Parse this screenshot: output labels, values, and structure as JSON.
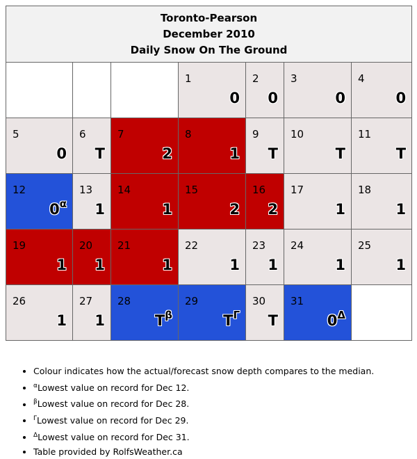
{
  "header": {
    "line1": "Toronto-Pearson",
    "line2": "December 2010",
    "line3": "Daily Snow On The Ground"
  },
  "colors": {
    "normal": "#ebe5e5",
    "above_median": "#c00000",
    "record_low": "#2352d9",
    "blank": "#ffffff"
  },
  "legend_icon": "medal-icon",
  "weeks": [
    [
      {
        "day": "",
        "value": "",
        "status": "blank"
      },
      {
        "day": "",
        "value": "",
        "status": "blank"
      },
      {
        "day": "",
        "value": "",
        "status": "blank"
      },
      {
        "day": "1",
        "value": "0",
        "status": "normal"
      },
      {
        "day": "2",
        "value": "0",
        "status": "normal"
      },
      {
        "day": "3",
        "value": "0",
        "status": "normal"
      },
      {
        "day": "4",
        "value": "0",
        "status": "normal"
      }
    ],
    [
      {
        "day": "5",
        "value": "0",
        "status": "normal"
      },
      {
        "day": "6",
        "value": "T",
        "status": "normal"
      },
      {
        "day": "7",
        "value": "2",
        "status": "above_median"
      },
      {
        "day": "8",
        "value": "1",
        "status": "above_median"
      },
      {
        "day": "9",
        "value": "T",
        "status": "normal"
      },
      {
        "day": "10",
        "value": "T",
        "status": "normal"
      },
      {
        "day": "11",
        "value": "T",
        "status": "normal"
      }
    ],
    [
      {
        "day": "12",
        "value": "0",
        "sup": "α",
        "status": "record_low",
        "medal": true
      },
      {
        "day": "13",
        "value": "1",
        "status": "normal"
      },
      {
        "day": "14",
        "value": "1",
        "status": "above_median"
      },
      {
        "day": "15",
        "value": "2",
        "status": "above_median"
      },
      {
        "day": "16",
        "value": "2",
        "status": "above_median"
      },
      {
        "day": "17",
        "value": "1",
        "status": "normal"
      },
      {
        "day": "18",
        "value": "1",
        "status": "normal"
      }
    ],
    [
      {
        "day": "19",
        "value": "1",
        "status": "above_median"
      },
      {
        "day": "20",
        "value": "1",
        "status": "above_median"
      },
      {
        "day": "21",
        "value": "1",
        "status": "above_median"
      },
      {
        "day": "22",
        "value": "1",
        "status": "normal"
      },
      {
        "day": "23",
        "value": "1",
        "status": "normal"
      },
      {
        "day": "24",
        "value": "1",
        "status": "normal"
      },
      {
        "day": "25",
        "value": "1",
        "status": "normal"
      }
    ],
    [
      {
        "day": "26",
        "value": "1",
        "status": "normal"
      },
      {
        "day": "27",
        "value": "1",
        "status": "normal"
      },
      {
        "day": "28",
        "value": "T",
        "sup": "β",
        "status": "record_low",
        "medal": true
      },
      {
        "day": "29",
        "value": "T",
        "sup": "Γ",
        "status": "record_low",
        "medal": true
      },
      {
        "day": "30",
        "value": "T",
        "status": "normal"
      },
      {
        "day": "31",
        "value": "0",
        "sup": "Δ",
        "status": "record_low",
        "medal": true
      },
      {
        "day": "",
        "value": "",
        "status": "blank"
      }
    ]
  ],
  "notes": [
    {
      "sup": "",
      "text": "Colour indicates how the actual/forecast snow depth compares to the median."
    },
    {
      "sup": "α",
      "text": "Lowest value on record for Dec 12."
    },
    {
      "sup": "β",
      "text": "Lowest value on record for Dec 28."
    },
    {
      "sup": "Γ",
      "text": "Lowest value on record for Dec 29."
    },
    {
      "sup": "Δ",
      "text": "Lowest value on record for Dec 31."
    },
    {
      "sup": "",
      "text": "Table provided by RolfsWeather.ca"
    }
  ]
}
